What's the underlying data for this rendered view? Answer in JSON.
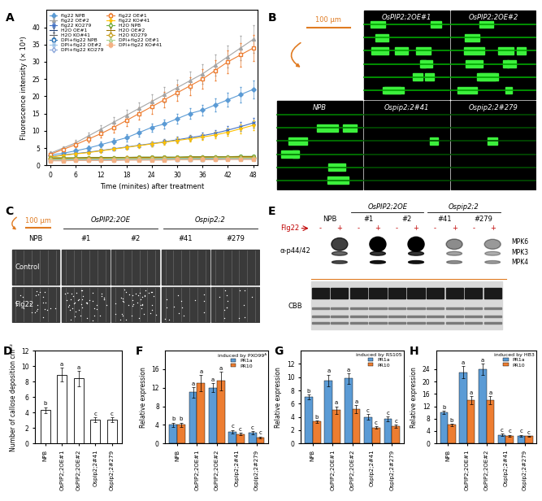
{
  "chart_data": [
    {
      "panel": "A",
      "type": "line",
      "xlabel": "Time (minites) after treatment",
      "ylabel": "Fluorescence intensity (× 10³)",
      "x": [
        0,
        3,
        6,
        9,
        12,
        15,
        18,
        21,
        24,
        27,
        30,
        33,
        36,
        39,
        42,
        45,
        48
      ],
      "xlim": [
        -1,
        49
      ],
      "xticks": [
        0,
        6,
        12,
        18,
        24,
        30,
        36,
        42,
        48
      ],
      "ylim": [
        0,
        45
      ],
      "yticks": [
        0,
        5,
        10,
        15,
        20,
        25,
        30,
        35,
        40
      ],
      "legend": "upper left",
      "series": [
        {
          "name": "flg22 NPB",
          "color": "#5b9bd5",
          "marker": "diamond",
          "values": [
            3,
            3.5,
            4.2,
            5,
            6,
            7,
            8,
            9.5,
            11,
            12,
            13.5,
            15,
            16,
            17.5,
            19,
            20.5,
            22
          ],
          "errors": [
            0.4,
            0.5,
            0.6,
            0.7,
            0.8,
            0.9,
            1,
            1.1,
            1.2,
            1.3,
            1.4,
            1.5,
            1.6,
            1.8,
            2,
            2.2,
            2.5
          ]
        },
        {
          "name": "flg22 OE#2",
          "color": "#a5a5a5",
          "marker": "triangle",
          "values": [
            3.5,
            5,
            6.5,
            8.5,
            10.5,
            12.5,
            14.5,
            16.5,
            18.5,
            20.5,
            22.5,
            24.5,
            26.5,
            29,
            31.5,
            34,
            36.5
          ],
          "errors": [
            0.5,
            0.6,
            0.8,
            1,
            1.2,
            1.4,
            1.6,
            1.8,
            2,
            2.2,
            2.4,
            2.6,
            2.8,
            3,
            3.2,
            3.5,
            4
          ]
        },
        {
          "name": "flg22 KO279",
          "color": "#4472c4",
          "marker": "x",
          "values": [
            2.5,
            3,
            3.4,
            3.8,
            4.3,
            4.8,
            5.3,
            5.8,
            6.3,
            6.8,
            7.4,
            8,
            8.6,
            9.3,
            10.2,
            11.2,
            12.3
          ],
          "errors": [
            0.3,
            0.3,
            0.4,
            0.4,
            0.5,
            0.5,
            0.6,
            0.6,
            0.7,
            0.7,
            0.8,
            0.8,
            0.9,
            1,
            1.1,
            1.3,
            1.5
          ]
        },
        {
          "name": "H2O OE#1",
          "color": "#264478",
          "marker": "none",
          "values": [
            2,
            2,
            2.1,
            2.1,
            2.1,
            2.2,
            2.2,
            2.2,
            2.3,
            2.3,
            2.3,
            2.3,
            2.4,
            2.4,
            2.4,
            2.5,
            2.5
          ],
          "errors": [
            0.3,
            0.3,
            0.3,
            0.3,
            0.3,
            0.3,
            0.3,
            0.3,
            0.3,
            0.3,
            0.3,
            0.3,
            0.3,
            0.3,
            0.3,
            0.3,
            0.3
          ]
        },
        {
          "name": "H2O KO#41",
          "color": "#636363",
          "marker": "none",
          "values": [
            1.8,
            1.8,
            1.9,
            1.9,
            1.9,
            2,
            2,
            2,
            2,
            2.1,
            2.1,
            2.1,
            2.1,
            2.2,
            2.2,
            2.2,
            2.3
          ],
          "errors": [
            0.3,
            0.3,
            0.3,
            0.3,
            0.3,
            0.3,
            0.3,
            0.3,
            0.3,
            0.3,
            0.3,
            0.3,
            0.3,
            0.3,
            0.3,
            0.3,
            0.3
          ]
        },
        {
          "name": "DPI+flg22 NPB",
          "color": "#2e75b6",
          "marker": "square_open",
          "values": [
            1.5,
            1.5,
            1.6,
            1.6,
            1.6,
            1.7,
            1.7,
            1.7,
            1.7,
            1.8,
            1.8,
            1.8,
            1.8,
            1.9,
            1.9,
            1.9,
            1.9
          ],
          "errors": [
            0.3,
            0.3,
            0.3,
            0.3,
            0.3,
            0.3,
            0.3,
            0.3,
            0.3,
            0.3,
            0.3,
            0.3,
            0.3,
            0.3,
            0.3,
            0.3,
            0.3
          ]
        },
        {
          "name": "DPI+flg22 OE#2",
          "color": "#9dc3e6",
          "marker": "x",
          "values": [
            1.6,
            1.6,
            1.7,
            1.7,
            1.7,
            1.8,
            1.8,
            1.8,
            1.9,
            1.9,
            1.9,
            1.9,
            2,
            2,
            2,
            2,
            2.1
          ],
          "errors": [
            0.3,
            0.3,
            0.3,
            0.3,
            0.3,
            0.3,
            0.3,
            0.3,
            0.3,
            0.3,
            0.3,
            0.3,
            0.3,
            0.3,
            0.3,
            0.3,
            0.3
          ]
        },
        {
          "name": "DPI+flg22 KO279",
          "color": "#8faadc",
          "marker": "circle_open",
          "values": [
            1.4,
            1.4,
            1.5,
            1.5,
            1.5,
            1.5,
            1.6,
            1.6,
            1.6,
            1.6,
            1.7,
            1.7,
            1.7,
            1.7,
            1.8,
            1.8,
            1.8
          ],
          "errors": [
            0.3,
            0.3,
            0.3,
            0.3,
            0.3,
            0.3,
            0.3,
            0.3,
            0.3,
            0.3,
            0.3,
            0.3,
            0.3,
            0.3,
            0.3,
            0.3,
            0.3
          ]
        },
        {
          "name": "flg22 OE#1",
          "color": "#ed7d31",
          "marker": "square_open",
          "values": [
            3.2,
            4.6,
            6,
            7.6,
            9.2,
            11,
            13,
            15,
            17,
            19,
            21,
            23,
            25,
            27.5,
            30,
            32,
            34
          ],
          "errors": [
            0.5,
            0.6,
            0.8,
            1,
            1.2,
            1.4,
            1.6,
            1.8,
            2,
            2.2,
            2.4,
            2.6,
            2.8,
            3,
            3.2,
            3.4,
            3.8
          ]
        },
        {
          "name": "flg22 KO#41",
          "color": "#ffc000",
          "marker": "star",
          "values": [
            2.4,
            2.9,
            3.3,
            3.7,
            4.2,
            4.7,
            5.2,
            5.7,
            6.2,
            6.7,
            7.2,
            7.7,
            8.2,
            8.8,
            9.6,
            10.6,
            11.6
          ],
          "errors": [
            0.3,
            0.3,
            0.4,
            0.4,
            0.5,
            0.5,
            0.6,
            0.6,
            0.7,
            0.7,
            0.8,
            0.8,
            0.9,
            1,
            1.1,
            1.3,
            1.5
          ]
        },
        {
          "name": "H2O NPB",
          "color": "#70ad47",
          "marker": "circle_open",
          "values": [
            2.2,
            2.2,
            2.2,
            2.3,
            2.3,
            2.3,
            2.3,
            2.4,
            2.4,
            2.4,
            2.4,
            2.5,
            2.5,
            2.5,
            2.5,
            2.6,
            2.6
          ],
          "errors": [
            0.3,
            0.3,
            0.3,
            0.3,
            0.3,
            0.3,
            0.3,
            0.3,
            0.3,
            0.3,
            0.3,
            0.3,
            0.3,
            0.3,
            0.3,
            0.3,
            0.3
          ]
        },
        {
          "name": "H2O OE#2",
          "color": "#997300",
          "marker": "none",
          "values": [
            2.1,
            2.1,
            2.1,
            2.2,
            2.2,
            2.2,
            2.2,
            2.3,
            2.3,
            2.3,
            2.3,
            2.4,
            2.4,
            2.4,
            2.4,
            2.5,
            2.5
          ],
          "errors": [
            0.3,
            0.3,
            0.3,
            0.3,
            0.3,
            0.3,
            0.3,
            0.3,
            0.3,
            0.3,
            0.3,
            0.3,
            0.3,
            0.3,
            0.3,
            0.3,
            0.3
          ]
        },
        {
          "name": "H2O KO279",
          "color": "#c9a227",
          "marker": "diamond_open",
          "values": [
            1.9,
            1.9,
            2,
            2,
            2,
            2,
            2.1,
            2.1,
            2.1,
            2.1,
            2.2,
            2.2,
            2.2,
            2.2,
            2.3,
            2.3,
            2.3
          ],
          "errors": [
            0.3,
            0.3,
            0.3,
            0.3,
            0.3,
            0.3,
            0.3,
            0.3,
            0.3,
            0.3,
            0.3,
            0.3,
            0.3,
            0.3,
            0.3,
            0.3,
            0.3
          ]
        },
        {
          "name": "DPI+flg22 OE#1",
          "color": "#a9d18e",
          "marker": "triangle_open",
          "values": [
            1.7,
            1.7,
            1.8,
            1.8,
            1.8,
            1.9,
            1.9,
            1.9,
            1.9,
            2,
            2,
            2,
            2,
            2.1,
            2.1,
            2.1,
            2.1
          ],
          "errors": [
            0.3,
            0.3,
            0.3,
            0.3,
            0.3,
            0.3,
            0.3,
            0.3,
            0.3,
            0.3,
            0.3,
            0.3,
            0.3,
            0.3,
            0.3,
            0.3,
            0.3
          ]
        },
        {
          "name": "DPI+flg22 KO#41",
          "color": "#f4b183",
          "marker": "square",
          "values": [
            1.3,
            1.3,
            1.4,
            1.4,
            1.4,
            1.4,
            1.5,
            1.5,
            1.5,
            1.5,
            1.6,
            1.6,
            1.6,
            1.6,
            1.7,
            1.7,
            1.7
          ],
          "errors": [
            0.3,
            0.3,
            0.3,
            0.3,
            0.3,
            0.3,
            0.3,
            0.3,
            0.3,
            0.3,
            0.3,
            0.3,
            0.3,
            0.3,
            0.3,
            0.3,
            0.3
          ]
        }
      ]
    },
    {
      "panel": "D",
      "type": "bar",
      "categories": [
        "NPB",
        "OsPIP2;2OE#1",
        "OsPIP2;2OE#2",
        "Ospip2;2#41",
        "Ospip2;2#279"
      ],
      "values": [
        4.3,
        8.9,
        8.4,
        3.1,
        3.1
      ],
      "errors": [
        0.4,
        0.9,
        1.0,
        0.3,
        0.3
      ],
      "letters": [
        "b",
        "a",
        "a",
        "c",
        "c"
      ],
      "color": "#ffffff",
      "ylabel": "Number of callose deposition cm⁻²",
      "ylim": [
        0,
        12
      ],
      "yticks": [
        0,
        2,
        4,
        6,
        8,
        10,
        12
      ]
    },
    {
      "panel": "F",
      "type": "bar",
      "categories": [
        "NPB",
        "OsPIP2;2OE#1",
        "OsPIP2;2OE#2",
        "Ospip2;2#41",
        "Ospip2;2#279"
      ],
      "ylabel": "Relative expression",
      "ylim": [
        0,
        20
      ],
      "yticks": [
        0,
        4,
        8,
        12,
        16
      ],
      "legend": "upper right",
      "legend_title": "induced by PXO99ᴬ",
      "series": [
        {
          "name": "PR1a",
          "color": "#5b9bd5",
          "values": [
            4,
            11,
            12,
            2.5,
            2.3
          ],
          "errors": [
            0.5,
            1.2,
            1.0,
            0.4,
            0.3
          ],
          "letters": [
            "b",
            "a",
            "a",
            "c",
            "c"
          ]
        },
        {
          "name": "PR10",
          "color": "#ed7d31",
          "values": [
            4,
            13,
            13.5,
            2,
            1.3
          ],
          "errors": [
            0.5,
            1.7,
            2.0,
            0.3,
            0.2
          ],
          "letters": [
            "b",
            "a",
            "a",
            "c",
            "c"
          ]
        }
      ]
    },
    {
      "panel": "G",
      "type": "bar",
      "categories": [
        "NPB",
        "OsPIP2;2OE#1",
        "OsPIP2;2OE#2",
        "Ospip2;2#41",
        "Ospip2;2#279"
      ],
      "ylabel": "Relative expression",
      "ylim": [
        0,
        14
      ],
      "yticks": [
        0,
        2,
        4,
        6,
        8,
        10,
        12
      ],
      "legend": "upper right",
      "legend_title": "induced by RS105",
      "series": [
        {
          "name": "PR1a",
          "color": "#5b9bd5",
          "values": [
            7,
            9.5,
            9.8,
            4,
            3.7
          ],
          "errors": [
            0.4,
            0.9,
            0.8,
            0.4,
            0.4
          ],
          "letters": [
            "b",
            "a",
            "a",
            "c",
            "c"
          ]
        },
        {
          "name": "PR10",
          "color": "#ed7d31",
          "values": [
            3.3,
            5,
            5.2,
            2.4,
            2.6
          ],
          "errors": [
            0.2,
            0.6,
            0.6,
            0.2,
            0.2
          ],
          "letters": [
            "b",
            "a",
            "a",
            "c",
            "c"
          ]
        }
      ]
    },
    {
      "panel": "H",
      "type": "bar",
      "categories": [
        "NPB",
        "OsPIP2;2OE#1",
        "OsPIP2;2OE#2",
        "Ospip2;2#41",
        "Ospip2;2#279"
      ],
      "ylabel": "Relative expression",
      "ylim": [
        0,
        30
      ],
      "yticks": [
        0,
        4,
        8,
        12,
        16,
        20,
        24
      ],
      "legend": "upper right",
      "legend_title": "induced by HB3",
      "series": [
        {
          "name": "PR1a",
          "color": "#5b9bd5",
          "values": [
            10,
            23,
            24,
            2.8,
            2.5
          ],
          "errors": [
            0.6,
            2.0,
            1.8,
            0.3,
            0.3
          ],
          "letters": [
            "b",
            "a",
            "a",
            "c",
            "c"
          ]
        },
        {
          "name": "PR10",
          "color": "#ed7d31",
          "values": [
            6,
            14,
            14,
            2.5,
            2.3
          ],
          "errors": [
            0.4,
            1.2,
            1.2,
            0.3,
            0.2
          ],
          "letters": [
            "b",
            "a",
            "a",
            "c",
            "c"
          ]
        }
      ]
    }
  ],
  "images": {
    "B": {
      "panel": "B",
      "scale_bar": "100 μm",
      "labels": [
        "OsPIP2;2OE#1",
        "OsPIP2;2OE#2",
        "NPB",
        "Ospip2;2#41",
        "Ospip2;2#279"
      ]
    },
    "C": {
      "panel": "C",
      "scale_bar": "100 μm",
      "groups": [
        "OsPIP2;2OE",
        "Ospip2;2"
      ],
      "columns": [
        "NPB",
        "#1",
        "#2",
        "#41",
        "#279"
      ],
      "rows": [
        "Control",
        "Flg22"
      ]
    },
    "E": {
      "panel": "E",
      "groups": [
        "OsPIP2;2OE",
        "Ospip2;2"
      ],
      "columns": [
        "NPB",
        "#1",
        "#2",
        "#41",
        "#279"
      ],
      "treatment": "Flg22",
      "treatment_marks": [
        "-",
        "+"
      ],
      "antibody": "α-p44/42",
      "bands": [
        "MPK6",
        "MPK3",
        "MPK4"
      ],
      "loading": "CBB"
    }
  }
}
